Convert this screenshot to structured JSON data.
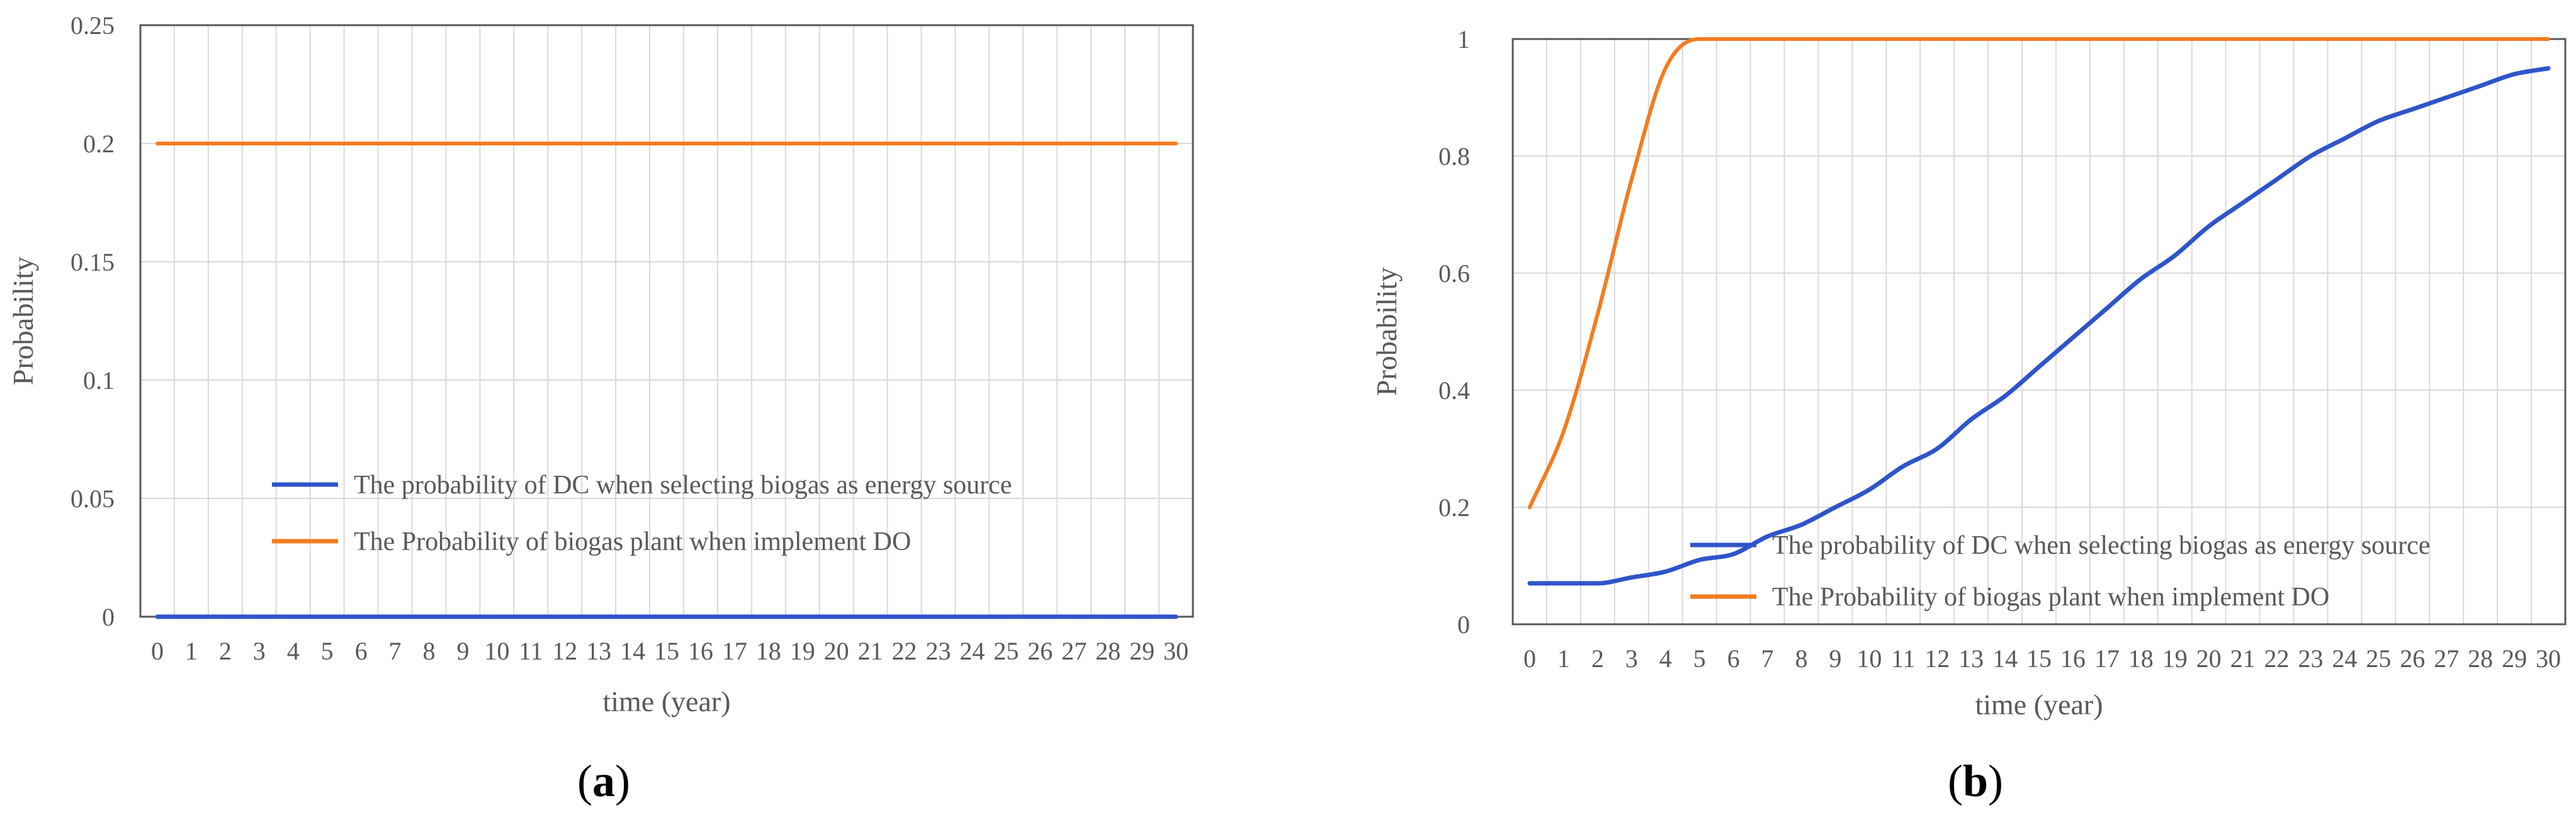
{
  "chart_data": [
    {
      "type": "line",
      "panel_label": "a",
      "xlabel": "time (year)",
      "ylabel": "Probability",
      "x": [
        0,
        1,
        2,
        3,
        4,
        5,
        6,
        7,
        8,
        9,
        10,
        11,
        12,
        13,
        14,
        15,
        16,
        17,
        18,
        19,
        20,
        21,
        22,
        23,
        24,
        25,
        26,
        27,
        28,
        29,
        30
      ],
      "xticks": [
        "0",
        "1",
        "2",
        "3",
        "4",
        "5",
        "6",
        "7",
        "8",
        "9",
        "10",
        "11",
        "12",
        "13",
        "14",
        "15",
        "16",
        "17",
        "18",
        "19",
        "20",
        "21",
        "22",
        "23",
        "24",
        "25",
        "26",
        "27",
        "28",
        "29",
        "30"
      ],
      "ylim": [
        0,
        0.25
      ],
      "yticks": [
        "0",
        "0.05",
        "0.1",
        "0.15",
        "0.2",
        "0.25"
      ],
      "ytick_values": [
        0,
        0.05,
        0.1,
        0.15,
        0.2,
        0.25
      ],
      "grid": "vertical",
      "legend_position": "lower-center",
      "series": [
        {
          "name": "The probability of DC when selecting biogas as energy source",
          "color": "#2e55c9",
          "values": [
            0,
            0,
            0,
            0,
            0,
            0,
            0,
            0,
            0,
            0,
            0,
            0,
            0,
            0,
            0,
            0,
            0,
            0,
            0,
            0,
            0,
            0,
            0,
            0,
            0,
            0,
            0,
            0,
            0,
            0,
            0
          ]
        },
        {
          "name": "The Probability of biogas plant when implement DO",
          "color": "#f47c20",
          "values": [
            0.2,
            0.2,
            0.2,
            0.2,
            0.2,
            0.2,
            0.2,
            0.2,
            0.2,
            0.2,
            0.2,
            0.2,
            0.2,
            0.2,
            0.2,
            0.2,
            0.2,
            0.2,
            0.2,
            0.2,
            0.2,
            0.2,
            0.2,
            0.2,
            0.2,
            0.2,
            0.2,
            0.2,
            0.2,
            0.2,
            0.2
          ]
        }
      ]
    },
    {
      "type": "line",
      "panel_label": "b",
      "xlabel": "time (year)",
      "ylabel": "Probability",
      "x": [
        0,
        1,
        2,
        3,
        4,
        5,
        6,
        7,
        8,
        9,
        10,
        11,
        12,
        13,
        14,
        15,
        16,
        17,
        18,
        19,
        20,
        21,
        22,
        23,
        24,
        25,
        26,
        27,
        28,
        29,
        30
      ],
      "xticks": [
        "0",
        "1",
        "2",
        "3",
        "4",
        "5",
        "6",
        "7",
        "8",
        "9",
        "10",
        "11",
        "12",
        "13",
        "14",
        "15",
        "16",
        "17",
        "18",
        "19",
        "20",
        "21",
        "22",
        "23",
        "24",
        "25",
        "26",
        "27",
        "28",
        "29",
        "30"
      ],
      "ylim": [
        0,
        1
      ],
      "yticks": [
        "0",
        "0.2",
        "0.4",
        "0.6",
        "0.8",
        "1"
      ],
      "ytick_values": [
        0,
        0.2,
        0.4,
        0.6,
        0.8,
        1
      ],
      "grid": "vertical",
      "legend_position": "lower-right",
      "series": [
        {
          "name": "The probability of DC when selecting biogas as energy source",
          "color": "#2e55c9",
          "values": [
            0.07,
            0.07,
            0.07,
            0.08,
            0.09,
            0.11,
            0.12,
            0.15,
            0.17,
            0.2,
            0.23,
            0.27,
            0.3,
            0.35,
            0.39,
            0.44,
            0.49,
            0.54,
            0.59,
            0.63,
            0.68,
            0.72,
            0.76,
            0.8,
            0.83,
            0.86,
            0.88,
            0.9,
            0.92,
            0.94,
            0.95
          ]
        },
        {
          "name": "The Probability of biogas plant when implement DO",
          "color": "#f47c20",
          "values": [
            0.2,
            0.33,
            0.53,
            0.76,
            0.95,
            1.0,
            1.0,
            1.0,
            1.0,
            1.0,
            1.0,
            1.0,
            1.0,
            1.0,
            1.0,
            1.0,
            1.0,
            1.0,
            1.0,
            1.0,
            1.0,
            1.0,
            1.0,
            1.0,
            1.0,
            1.0,
            1.0,
            1.0,
            1.0,
            1.0,
            1.0
          ]
        }
      ]
    }
  ]
}
